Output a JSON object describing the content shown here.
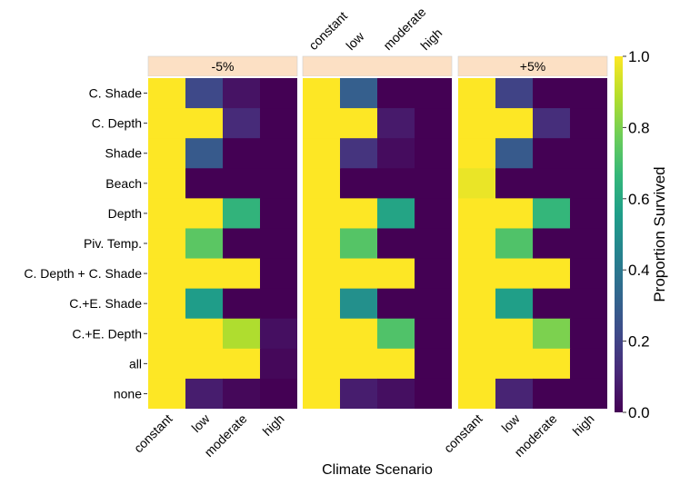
{
  "chart_data": {
    "type": "heatmap",
    "xlabel": "Climate Scenario",
    "colorbar_label": "Proportion Survived",
    "colorbar_ticks": [
      "0.0",
      "0.2",
      "0.4",
      "0.6",
      "0.8",
      "1.0"
    ],
    "colorbar_range": [
      0,
      1
    ],
    "colormap": "viridis",
    "colormap_stops": [
      "#440154",
      "#482878",
      "#3e4a89",
      "#31688e",
      "#26828e",
      "#1f9e89",
      "#35b779",
      "#6ece58",
      "#b5de2b",
      "#fde725"
    ],
    "strip_color": "#fce0c4",
    "x_categories": [
      "constant",
      "low",
      "moderate",
      "high"
    ],
    "y_categories": [
      "C. Shade",
      "C. Depth",
      "Shade",
      "Beach",
      "Depth",
      "Piv. Temp.",
      "C. Depth + C. Shade",
      "C.+E. Shade",
      "C.+E. Depth",
      "all",
      "none"
    ],
    "panels": [
      {
        "label": "-5%",
        "values": [
          [
            1.0,
            0.22,
            0.05,
            0.0
          ],
          [
            1.0,
            1.0,
            0.12,
            0.0
          ],
          [
            1.0,
            0.28,
            0.0,
            0.0
          ],
          [
            1.0,
            0.0,
            0.0,
            0.0
          ],
          [
            1.0,
            1.0,
            0.65,
            0.0
          ],
          [
            1.0,
            0.74,
            0.0,
            0.0
          ],
          [
            1.0,
            1.0,
            1.0,
            0.0
          ],
          [
            1.0,
            0.55,
            0.0,
            0.0
          ],
          [
            1.0,
            1.0,
            0.88,
            0.04
          ],
          [
            1.0,
            1.0,
            1.0,
            0.02
          ],
          [
            1.0,
            0.08,
            0.02,
            0.0
          ]
        ]
      },
      {
        "label": "",
        "values": [
          [
            1.0,
            0.3,
            0.0,
            0.0
          ],
          [
            1.0,
            1.0,
            0.07,
            0.0
          ],
          [
            1.0,
            0.15,
            0.03,
            0.0
          ],
          [
            1.0,
            0.0,
            0.0,
            0.0
          ],
          [
            1.0,
            1.0,
            0.58,
            0.0
          ],
          [
            1.0,
            0.73,
            0.0,
            0.0
          ],
          [
            1.0,
            1.0,
            1.0,
            0.0
          ],
          [
            1.0,
            0.5,
            0.0,
            0.0
          ],
          [
            1.0,
            1.0,
            0.72,
            0.0
          ],
          [
            1.0,
            1.0,
            1.0,
            0.0
          ],
          [
            1.0,
            0.08,
            0.04,
            0.0
          ]
        ]
      },
      {
        "label": "+5%",
        "values": [
          [
            1.0,
            0.2,
            0.0,
            0.0
          ],
          [
            1.0,
            1.0,
            0.13,
            0.0
          ],
          [
            1.0,
            0.28,
            0.0,
            0.0
          ],
          [
            0.97,
            0.0,
            0.0,
            0.0
          ],
          [
            1.0,
            1.0,
            0.66,
            0.0
          ],
          [
            1.0,
            0.72,
            0.0,
            0.0
          ],
          [
            1.0,
            1.0,
            1.0,
            0.0
          ],
          [
            1.0,
            0.56,
            0.0,
            0.0
          ],
          [
            1.0,
            1.0,
            0.8,
            0.0
          ],
          [
            1.0,
            1.0,
            1.0,
            0.0
          ],
          [
            1.0,
            0.1,
            0.0,
            0.0
          ]
        ]
      }
    ],
    "top_axis_panel": 1,
    "bottom_axis_panels": [
      0,
      2
    ]
  }
}
